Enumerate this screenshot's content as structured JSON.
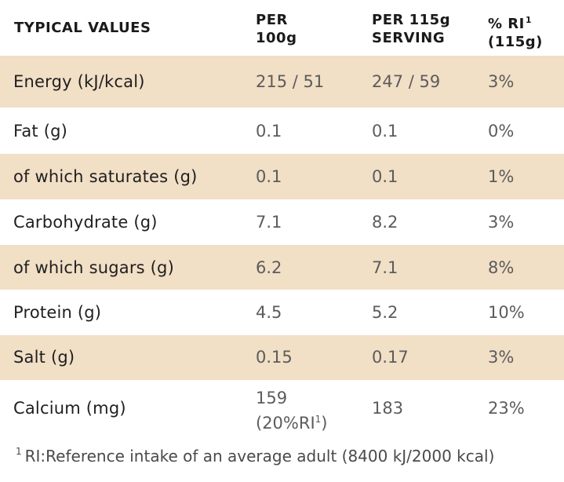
{
  "header": {
    "col_label": "TYPICAL VALUES",
    "col_per100_line1": "PER",
    "col_per100_line2": "100g",
    "col_serving_line1": "PER 115g",
    "col_serving_line2": "SERVING",
    "col_ri_line1": "% RI",
    "col_ri_sup": "1",
    "col_ri_line2": "(115g)"
  },
  "rows": [
    {
      "label": "Energy (kJ/kcal)",
      "per100": "215 / 51",
      "serving": "247 / 59",
      "ri": "3%"
    },
    {
      "label": "Fat (g)",
      "per100": "0.1",
      "serving": "0.1",
      "ri": "0%"
    },
    {
      "label": "of which saturates (g)",
      "per100": "0.1",
      "serving": "0.1",
      "ri": "1%"
    },
    {
      "label": "Carbohydrate (g)",
      "per100": "7.1",
      "serving": "8.2",
      "ri": "3%"
    },
    {
      "label": "of which sugars (g)",
      "per100": "6.2",
      "serving": "7.1",
      "ri": "8%"
    },
    {
      "label": "Protein (g)",
      "per100": "4.5",
      "serving": "5.2",
      "ri": "10%"
    },
    {
      "label": "Salt (g)",
      "per100": "0.15",
      "serving": "0.17",
      "ri": "3%"
    },
    {
      "label": "Calcium (mg)",
      "per100_line1": "159",
      "per100_line2": "(20%RI",
      "per100_sup": "1",
      "per100_close": ")",
      "serving": "183",
      "ri": "23%"
    }
  ],
  "footnote": {
    "marker": "1",
    "text": "RI:Reference intake of an average adult (8400 kJ/2000 kcal)"
  },
  "colors": {
    "row_shade": "#f1dfc6",
    "text_dark": "#1f1f1f",
    "text_value": "#5c5c5c"
  }
}
